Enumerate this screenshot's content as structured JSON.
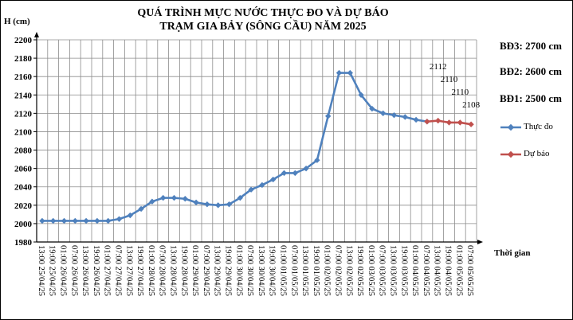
{
  "chart_data": {
    "type": "line",
    "title": "QUÁ TRÌNH MỰC NƯỚC THỰC ĐO VÀ DỰ BÁO",
    "subtitle": "TRẠM GIA BẢY (SÔNG CẦU) NĂM 2025",
    "ylabel": "H (cm)",
    "xlabel": "Thời gian",
    "ylim": [
      1980,
      2200
    ],
    "yticks": [
      1980,
      2000,
      2020,
      2040,
      2060,
      2080,
      2100,
      2120,
      2140,
      2160,
      2180,
      2200
    ],
    "grid": true,
    "categories": [
      "13:00 25/04/25",
      "19:00 25/04/25",
      "01:00 26/04/25",
      "07:00 26/04/25",
      "13:00 26/04/25",
      "19:00 26/04/25",
      "01:00 27/04/25",
      "07:00 27/04/25",
      "13:00 27/04/25",
      "19:00 27/04/25",
      "01:00 28/04/25",
      "07:00 28/04/25",
      "13:00 28/04/25",
      "19:00 28/04/25",
      "01:00 29/04/25",
      "07:00 29/04/25",
      "13:00 29/04/25",
      "19:00 29/04/25",
      "01:00 30/04/25",
      "07:00 30/04/25",
      "13:00 30/04/25",
      "19:00 30/04/25",
      "01:00 01/05/25",
      "07:00 01/05/25",
      "13:00 01/05/25",
      "19:00 01/05/25",
      "01:00 02/05/25",
      "07:00 02/05/25",
      "13:00 02/05/25",
      "19:00 02/05/25",
      "01:00 03/05/25",
      "07:00 03/05/25",
      "13:00 03/05/25",
      "19:00 03/05/25",
      "01:00 04/05/25",
      "07:00 04/05/25",
      "13:00 04/05/25",
      "19:00 04/05/25",
      "01:00 05/05/25",
      "07:00 05/05/25"
    ],
    "series": [
      {
        "name": "Thực đo",
        "color": "#4f81bd",
        "values": [
          2003,
          2003,
          2003,
          2003,
          2003,
          2003,
          2003,
          2005,
          2009,
          2016,
          2024,
          2028,
          2028,
          2027,
          2023,
          2021,
          2020,
          2021,
          2028,
          2037,
          2042,
          2048,
          2055,
          2055,
          2060,
          2069,
          2117,
          2164,
          2164,
          2140,
          2125,
          2120,
          2118,
          2116,
          2113,
          2111,
          null,
          null,
          null,
          null
        ]
      },
      {
        "name": "Dự báo",
        "color": "#c0504d",
        "values": [
          null,
          null,
          null,
          null,
          null,
          null,
          null,
          null,
          null,
          null,
          null,
          null,
          null,
          null,
          null,
          null,
          null,
          null,
          null,
          null,
          null,
          null,
          null,
          null,
          null,
          null,
          null,
          null,
          null,
          null,
          null,
          null,
          null,
          null,
          null,
          2111,
          2112,
          2110,
          2110,
          2108
        ]
      }
    ],
    "data_labels": [
      "2112",
      "2110",
      "2110",
      "2108"
    ],
    "legend_position": "right"
  },
  "alerts": {
    "bd3": "BĐ3: 2700 cm",
    "bd2": "BĐ2: 2600 cm",
    "bd1": "BĐ1: 2500 cm"
  }
}
